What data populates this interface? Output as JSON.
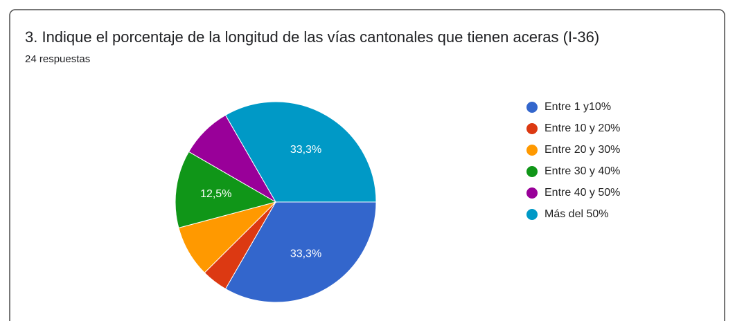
{
  "chart_data": {
    "type": "pie",
    "title": "3. Indique el porcentaje de la longitud de las vías cantonales que tienen aceras (I-36)",
    "subtitle": "24 respuestas",
    "categories": [
      "Entre 1 y10%",
      "Entre 10 y 20%",
      "Entre 20 y 30%",
      "Entre 30 y 40%",
      "Entre 40 y 50%",
      "Más del 50%"
    ],
    "values": [
      33.3,
      4.2,
      8.3,
      12.5,
      8.3,
      33.3
    ],
    "value_labels": [
      "33,3%",
      null,
      null,
      "12,5%",
      null,
      "33,3%"
    ],
    "colors": [
      "#3366cc",
      "#dc3912",
      "#ff9900",
      "#109618",
      "#990099",
      "#0099c6"
    ],
    "legend": "right"
  }
}
